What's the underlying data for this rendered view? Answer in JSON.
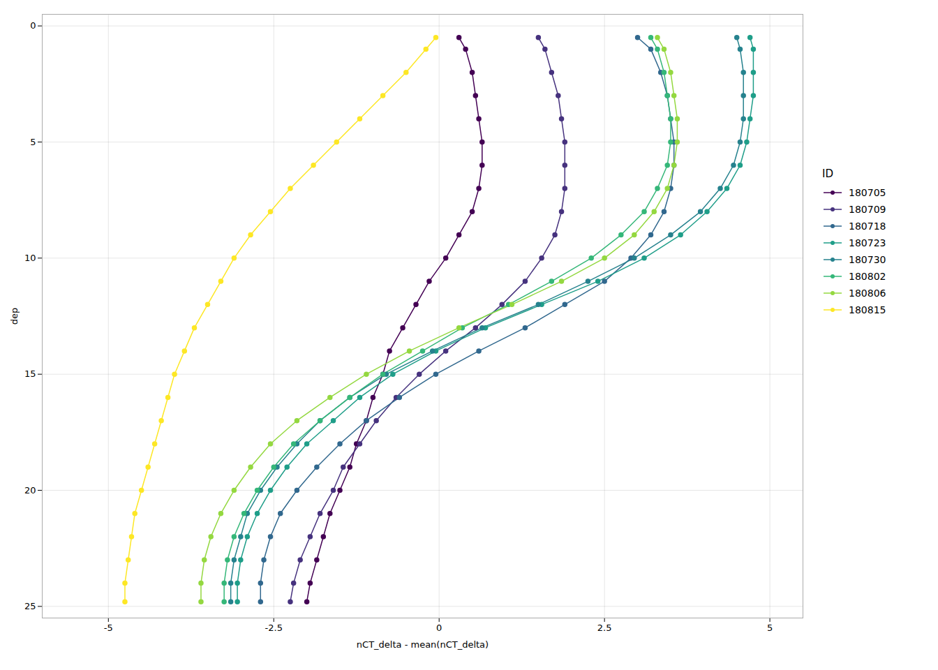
{
  "chart_data": {
    "type": "line",
    "xlabel": "nCT_delta - mean(nCT_delta)",
    "ylabel": "dep",
    "legend_title": "ID",
    "legend": "right",
    "grid": true,
    "marker": "circle",
    "xlim": [
      -6.0,
      5.5
    ],
    "ylim": [
      25.5,
      -0.5
    ],
    "xticks": [
      -5.0,
      -2.5,
      0.0,
      2.5,
      5.0
    ],
    "yticks": [
      0,
      5,
      10,
      15,
      20,
      25
    ],
    "series": [
      {
        "name": "180705",
        "color": "#440154",
        "x": [
          0.3,
          0.4,
          0.5,
          0.55,
          0.6,
          0.65,
          0.65,
          0.6,
          0.5,
          0.3,
          0.1,
          -0.15,
          -0.35,
          -0.55,
          -0.75,
          -0.85,
          -1.0,
          -1.1,
          -1.25,
          -1.35,
          -1.5,
          -1.65,
          -1.75,
          -1.85,
          -1.95,
          -2.0
        ],
        "values": [
          0.5,
          1,
          2,
          3,
          4,
          5,
          6,
          7,
          8,
          9,
          10,
          11,
          12,
          13,
          14,
          15,
          16,
          17,
          18,
          19,
          20,
          21,
          22,
          23,
          24,
          24.8
        ]
      },
      {
        "name": "180709",
        "color": "#46327E",
        "x": [
          1.5,
          1.6,
          1.7,
          1.8,
          1.85,
          1.9,
          1.9,
          1.9,
          1.85,
          1.75,
          1.55,
          1.3,
          0.95,
          0.55,
          0.1,
          -0.3,
          -0.65,
          -0.95,
          -1.2,
          -1.45,
          -1.6,
          -1.8,
          -1.95,
          -2.1,
          -2.2,
          -2.25
        ],
        "values": [
          0.5,
          1,
          2,
          3,
          4,
          5,
          6,
          7,
          8,
          9,
          10,
          11,
          12,
          13,
          14,
          15,
          16,
          17,
          18,
          19,
          20,
          21,
          22,
          23,
          24,
          24.8
        ]
      },
      {
        "name": "180718",
        "color": "#31688E",
        "x": [
          3.0,
          3.2,
          3.35,
          3.45,
          3.5,
          3.55,
          3.55,
          3.5,
          3.4,
          3.2,
          2.9,
          2.5,
          1.9,
          1.3,
          0.6,
          -0.05,
          -0.6,
          -1.1,
          -1.5,
          -1.85,
          -2.15,
          -2.4,
          -2.55,
          -2.65,
          -2.7,
          -2.7
        ],
        "values": [
          0.5,
          1,
          2,
          3,
          4,
          5,
          6,
          7,
          8,
          9,
          10,
          11,
          12,
          13,
          14,
          15,
          16,
          17,
          18,
          19,
          20,
          21,
          22,
          23,
          24,
          24.8
        ]
      },
      {
        "name": "180723",
        "color": "#1F9E89",
        "x": [
          4.7,
          4.75,
          4.75,
          4.75,
          4.7,
          4.65,
          4.55,
          4.35,
          4.05,
          3.65,
          3.1,
          2.4,
          1.55,
          0.7,
          -0.05,
          -0.7,
          -1.2,
          -1.6,
          -2.0,
          -2.3,
          -2.55,
          -2.75,
          -2.9,
          -3.0,
          -3.05,
          -3.05
        ],
        "values": [
          0.5,
          1,
          2,
          3,
          4,
          5,
          6,
          7,
          8,
          9,
          10,
          11,
          12,
          13,
          14,
          15,
          16,
          17,
          18,
          19,
          20,
          21,
          22,
          23,
          24,
          24.8
        ]
      },
      {
        "name": "180730",
        "color": "#26828E",
        "x": [
          4.5,
          4.55,
          4.6,
          4.6,
          4.6,
          4.55,
          4.45,
          4.25,
          3.95,
          3.5,
          2.95,
          2.25,
          1.5,
          0.65,
          -0.1,
          -0.8,
          -1.35,
          -1.8,
          -2.15,
          -2.45,
          -2.7,
          -2.9,
          -3.0,
          -3.1,
          -3.15,
          -3.15
        ],
        "values": [
          0.5,
          1,
          2,
          3,
          4,
          5,
          6,
          7,
          8,
          9,
          10,
          11,
          12,
          13,
          14,
          15,
          16,
          17,
          18,
          19,
          20,
          21,
          22,
          23,
          24,
          24.8
        ]
      },
      {
        "name": "180802",
        "color": "#35B779",
        "x": [
          3.2,
          3.3,
          3.4,
          3.45,
          3.5,
          3.5,
          3.45,
          3.3,
          3.1,
          2.75,
          2.3,
          1.7,
          1.05,
          0.35,
          -0.25,
          -0.85,
          -1.35,
          -1.8,
          -2.2,
          -2.5,
          -2.75,
          -2.95,
          -3.1,
          -3.2,
          -3.25,
          -3.25
        ],
        "values": [
          0.5,
          1,
          2,
          3,
          4,
          5,
          6,
          7,
          8,
          9,
          10,
          11,
          12,
          13,
          14,
          15,
          16,
          17,
          18,
          19,
          20,
          21,
          22,
          23,
          24,
          24.8
        ]
      },
      {
        "name": "180806",
        "color": "#94D840",
        "x": [
          3.3,
          3.4,
          3.5,
          3.55,
          3.6,
          3.6,
          3.55,
          3.45,
          3.25,
          2.95,
          2.5,
          1.85,
          1.1,
          0.3,
          -0.45,
          -1.1,
          -1.65,
          -2.15,
          -2.55,
          -2.85,
          -3.1,
          -3.3,
          -3.45,
          -3.55,
          -3.6,
          -3.6
        ],
        "values": [
          0.5,
          1,
          2,
          3,
          4,
          5,
          6,
          7,
          8,
          9,
          10,
          11,
          12,
          13,
          14,
          15,
          16,
          17,
          18,
          19,
          20,
          21,
          22,
          23,
          24,
          24.8
        ]
      },
      {
        "name": "180815",
        "color": "#FDE725",
        "x": [
          -0.05,
          -0.2,
          -0.5,
          -0.85,
          -1.2,
          -1.55,
          -1.9,
          -2.25,
          -2.55,
          -2.85,
          -3.1,
          -3.3,
          -3.5,
          -3.7,
          -3.85,
          -4.0,
          -4.1,
          -4.2,
          -4.3,
          -4.4,
          -4.5,
          -4.6,
          -4.65,
          -4.7,
          -4.75,
          -4.75
        ],
        "values": [
          0.5,
          1,
          2,
          3,
          4,
          5,
          6,
          7,
          8,
          9,
          10,
          11,
          12,
          13,
          14,
          15,
          16,
          17,
          18,
          19,
          20,
          21,
          22,
          23,
          24,
          24.8
        ]
      }
    ]
  }
}
